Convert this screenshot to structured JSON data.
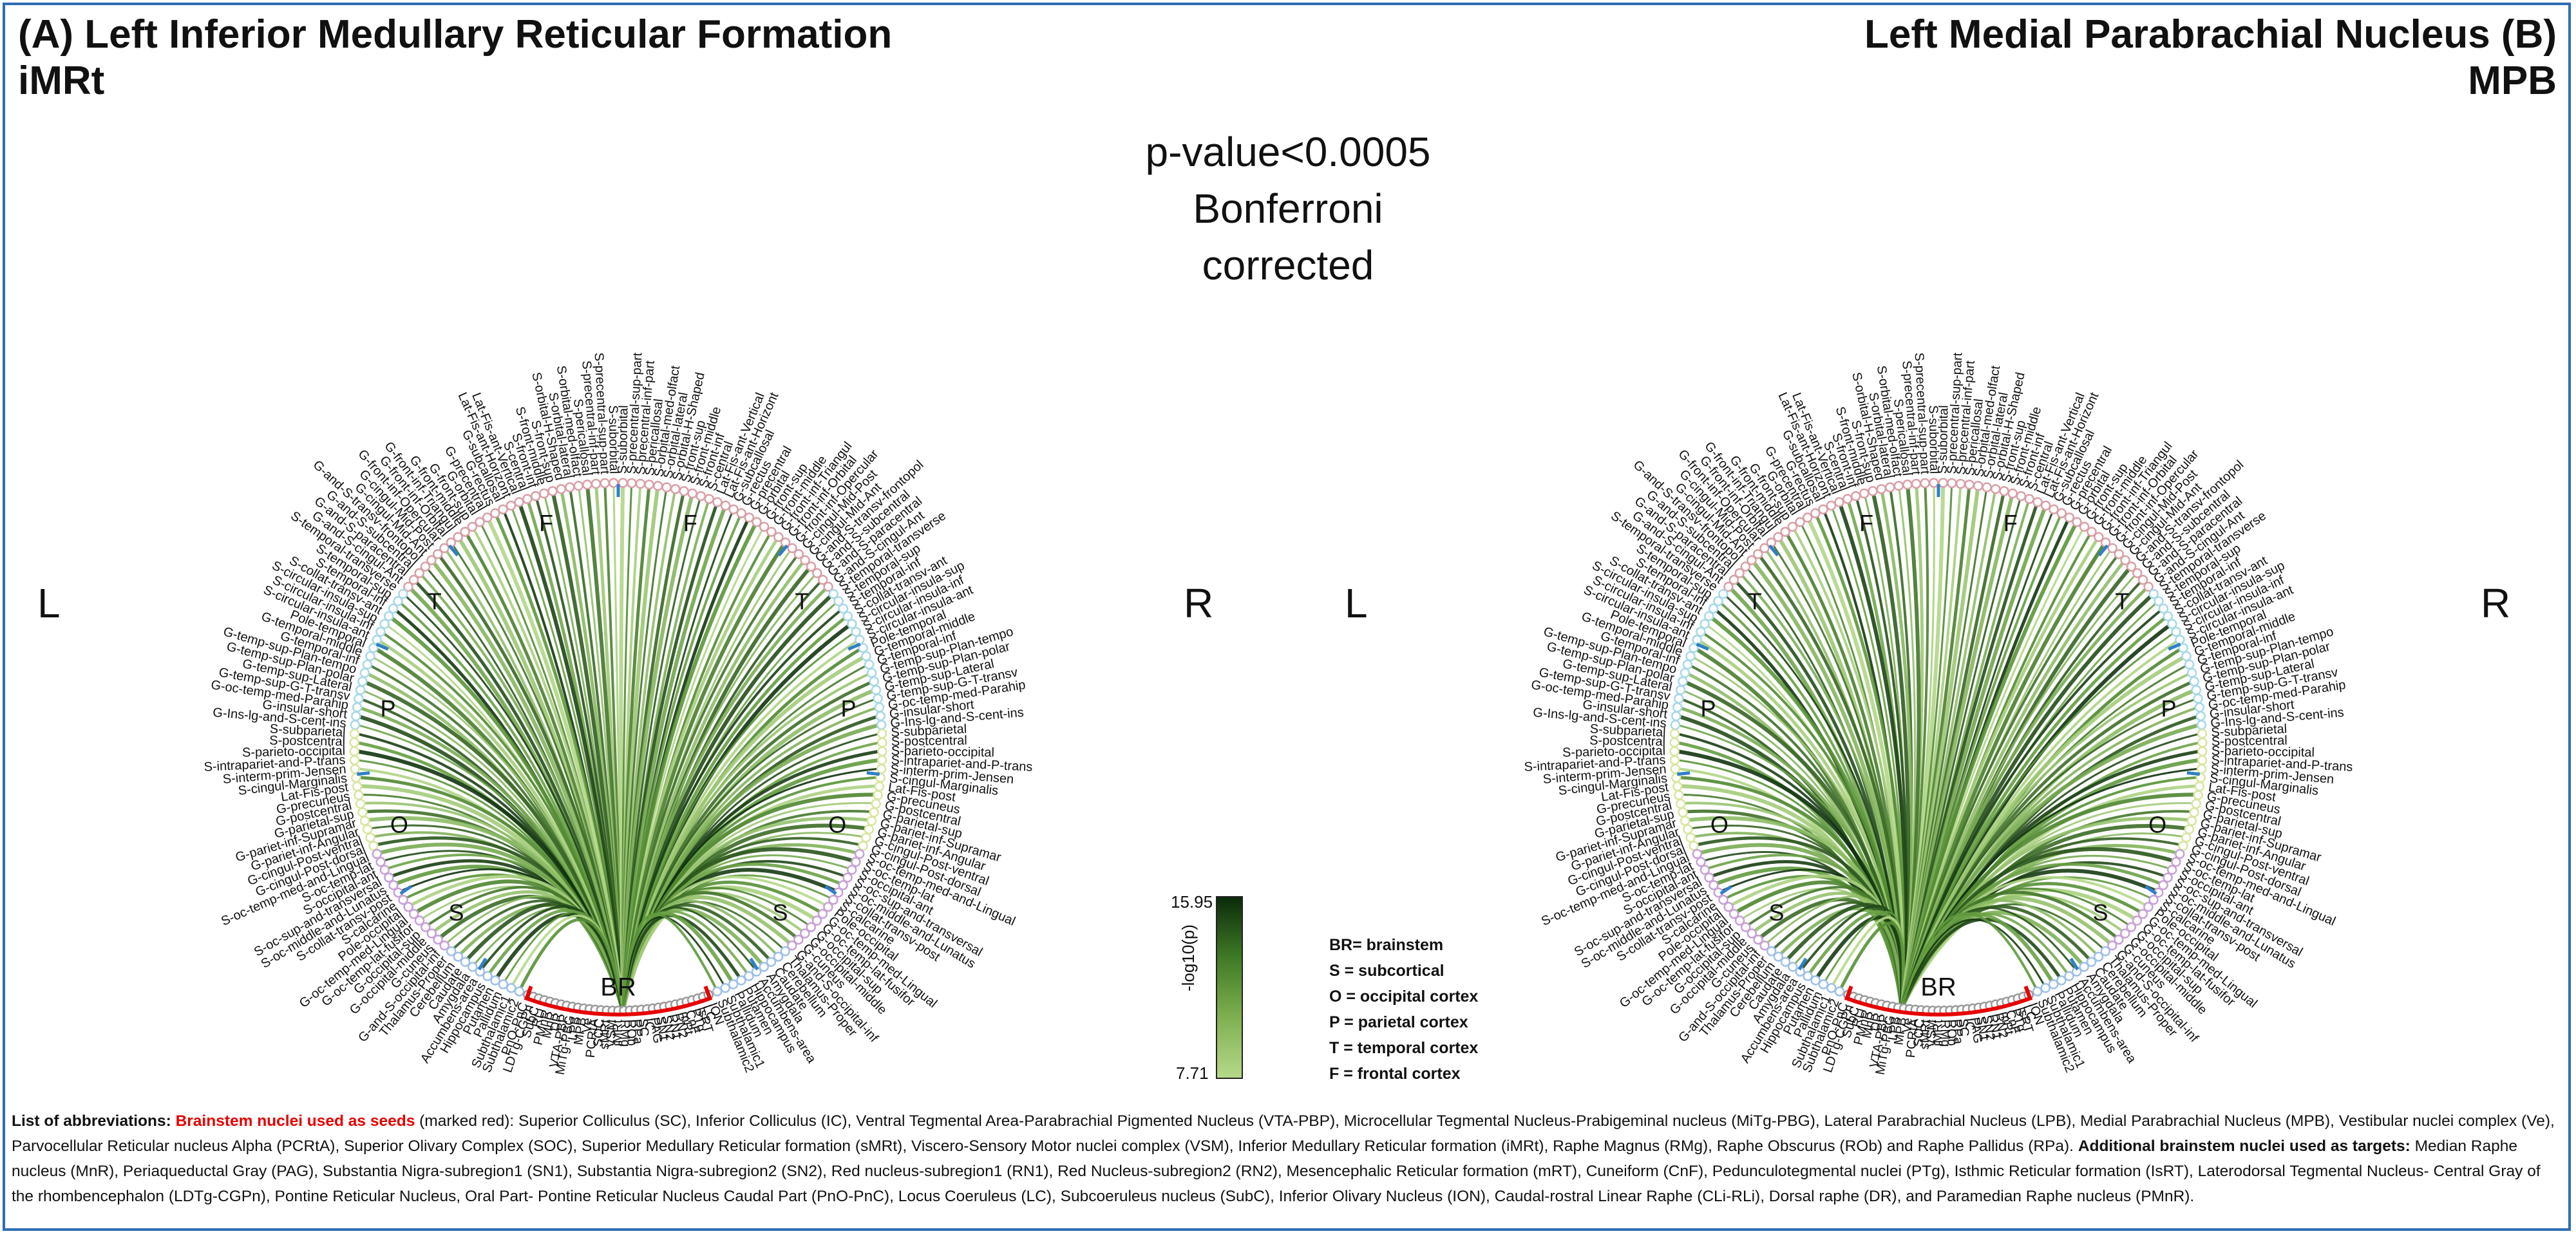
{
  "panels": [
    {
      "id": "A",
      "title_line1": "(A) Left Inferior Medullary Reticular Formation",
      "title_line2": "iMRt",
      "seed": "iMRt"
    },
    {
      "id": "B",
      "title_line1": "Left Medial Parabrachial Nucleus (B)",
      "title_line2": "MPB",
      "seed": "MPB"
    }
  ],
  "center_text": [
    "p-value<0.0005",
    "Bonferroni",
    "corrected"
  ],
  "side_labels": {
    "left": "L",
    "right": "R"
  },
  "lobe_letters": {
    "frontal": "F",
    "temporal": "T",
    "parietal": "P",
    "occipital": "O",
    "subcortical": "S",
    "brainstem": "BR"
  },
  "colorbar": {
    "max": "15.95",
    "min": "7.71",
    "label": "-log10(p)",
    "colors": [
      "#0b2b0b",
      "#3f7a24",
      "#7fb050",
      "#b5d98a"
    ]
  },
  "legend": [
    "BR= brainstem",
    "S = subcortical",
    "O = occipital cortex",
    "P = parietal cortex",
    "T = temporal cortex",
    "F = frontal cortex"
  ],
  "colors": {
    "frontal_nodes": "#d9a0a6",
    "temporal_nodes": "#a8d8e8",
    "parietal_nodes": "#d8e6a0",
    "occipital_nodes": "#c8a0d8",
    "subcortical_nodes": "#a0c0e8",
    "brainstem_nodes": "#9a9a9a",
    "brainstem_bracket": "#e60000",
    "lobe_ticks": "#2f7fc8",
    "border": "#2f6db4"
  },
  "labels": {
    "left_ccw_from_top": [
      "S-suborbital",
      "S-precentral-sup-part",
      "S-precentral-inf-part",
      "S-pericallosal",
      "S-orbital-med-olfact",
      "S-orbital-lateral",
      "S-orbital-H-Shaped",
      "S-front-sup",
      "S-front-middle",
      "S-front-inf",
      "S-central",
      "Lat-Fis-ant-Vertical",
      "Lat-Fis-ant-Horizont",
      "G-subcallosal",
      "G-rectus",
      "G-precentral",
      "G-orbital",
      "G-front-sup",
      "G-front-middle",
      "G-front-inf-Triangul",
      "G-front-inf-Orbital",
      "G-front-inf-Opercular",
      "G-cingul-Mid-Post",
      "G-cingul-Mid-Ant",
      "G-and-S-transv-frontopol",
      "G-and-S-subcentral",
      "G-and-S-paracentral",
      "G-and-S-cingul-Ant",
      "S-temporal-transverse",
      "S-temporal-sup",
      "S-temporal-inf",
      "S-collat-transv-ant",
      "S-circular-insula-sup",
      "S-circular-insula-inf",
      "S-circular-insula-ant",
      "Pole-temporal",
      "G-temporal-middle",
      "G-temporal-inf",
      "G-temp-sup-Plan-tempo",
      "G-temp-sup-Plan-polar",
      "G-temp-sup-Lateral",
      "G-temp-sup-G-T-transv",
      "G-oc-temp-med-Parahip",
      "G-insular-short",
      "G-Ins-lg-and-S-cent-ins",
      "S-subparietal",
      "S-postcentral",
      "S-parieto-occipital",
      "S-intrapariet-and-P-trans",
      "S-interm-prim-Jensen",
      "S-cingul-Marginalis",
      "Lat-Fis-post",
      "G-precuneus",
      "G-postcentral",
      "G-parietal-sup",
      "G-pariet-inf-Supramar",
      "G-pariet-inf-Angular",
      "G-cingul-Post-ventral",
      "G-cingul-Post-dorsal",
      "S-oc-temp-med-and-Lingual",
      "S-oc-temp-lat",
      "S-occipital-ant",
      "S-oc-sup-and-transversal",
      "S-oc-middle-and-Lunatus",
      "S-collat-transv-post",
      "S-calcarine",
      "Pole-occipital",
      "G-oc-temp-med-Lingual",
      "G-oc-temp-lat-fusifor",
      "G-occipital-sup",
      "G-occipital-middle",
      "G-cuneus",
      "G-and-S-occipital-inf",
      "Thalamus-Proper",
      "Cerebellum",
      "Caudate",
      "Amygdala",
      "Accumbens-area",
      "Hippocampus",
      "Putamen",
      "Pallidum",
      "Subthalamic1",
      "Subthalamic2"
    ],
    "bottom_left": [
      "PnO-PnC",
      "LDTg-CGPn",
      "SubC",
      "RLi",
      "PMnR",
      "MnR",
      "DR"
    ],
    "bottom_center": [
      "VTA-PBP",
      "MiTg-PBG",
      "LPB",
      "MPB",
      "Ve",
      "PCRtA",
      "SOC",
      "sMRt",
      "VSM",
      "iMRt",
      "RMg",
      "ROb",
      "RPa"
    ],
    "bottom_right": [
      "SC",
      "IC",
      "PAG",
      "SN1",
      "SN2",
      "RN1",
      "RN2",
      "mRt",
      "CnF",
      "PTg",
      "IsRT",
      "LC",
      "ION"
    ]
  },
  "footer": {
    "intro": "List of abbreviations:",
    "seed_heading": "Brainstem nuclei used as seeds",
    "seed_note": "(marked red):",
    "seed_text": "Superior Colliculus (SC), Inferior Colliculus (IC), Ventral Tegmental Area-Parabrachial Pigmented Nucleus (VTA-PBP), Microcellular Tegmental Nucleus-Prabigeminal nucleus (MiTg-PBG), Lateral Parabrachial Nucleus (LPB), Medial Parabrachial Nucleus (MPB), Vestibular nuclei complex (Ve), Parvocellular Reticular nucleus Alpha (PCRtA), Superior Olivary Complex (SOC), Superior Medullary Reticular formation (sMRt), Viscero-Sensory Motor nuclei complex (VSM), Inferior Medullary Reticular formation (iMRt), Raphe Magnus (RMg), Raphe Obscurus (ROb) and Raphe Pallidus (RPa).",
    "target_heading": "Additional brainstem nuclei used as targets:",
    "target_text": "Median Raphe nucleus (MnR), Periaqueductal Gray (PAG), Substantia Nigra-subregion1 (SN1), Substantia Nigra-subregion2 (SN2), Red nucleus-subregion1 (RN1), Red Nucleus-subregion2 (RN2), Mesencephalic Reticular formation (mRT), Cuneiform (CnF), Pedunculotegmental nuclei (PTg), Isthmic Reticular formation (IsRT), Laterodorsal Tegmental Nucleus- Central Gray of the rhombencephalon (LDTg-CGPn), Pontine Reticular Nucleus, Oral Part- Pontine Reticular Nucleus Caudal Part (PnO-PnC), Locus Coeruleus (LC), Subcoeruleus nucleus (SubC), Inferior Olivary Nucleus (ION), Caudal-rostral Linear Raphe (CLi-RLi), Dorsal raphe (DR), and Paramedian Raphe nucleus (PMnR)."
  }
}
